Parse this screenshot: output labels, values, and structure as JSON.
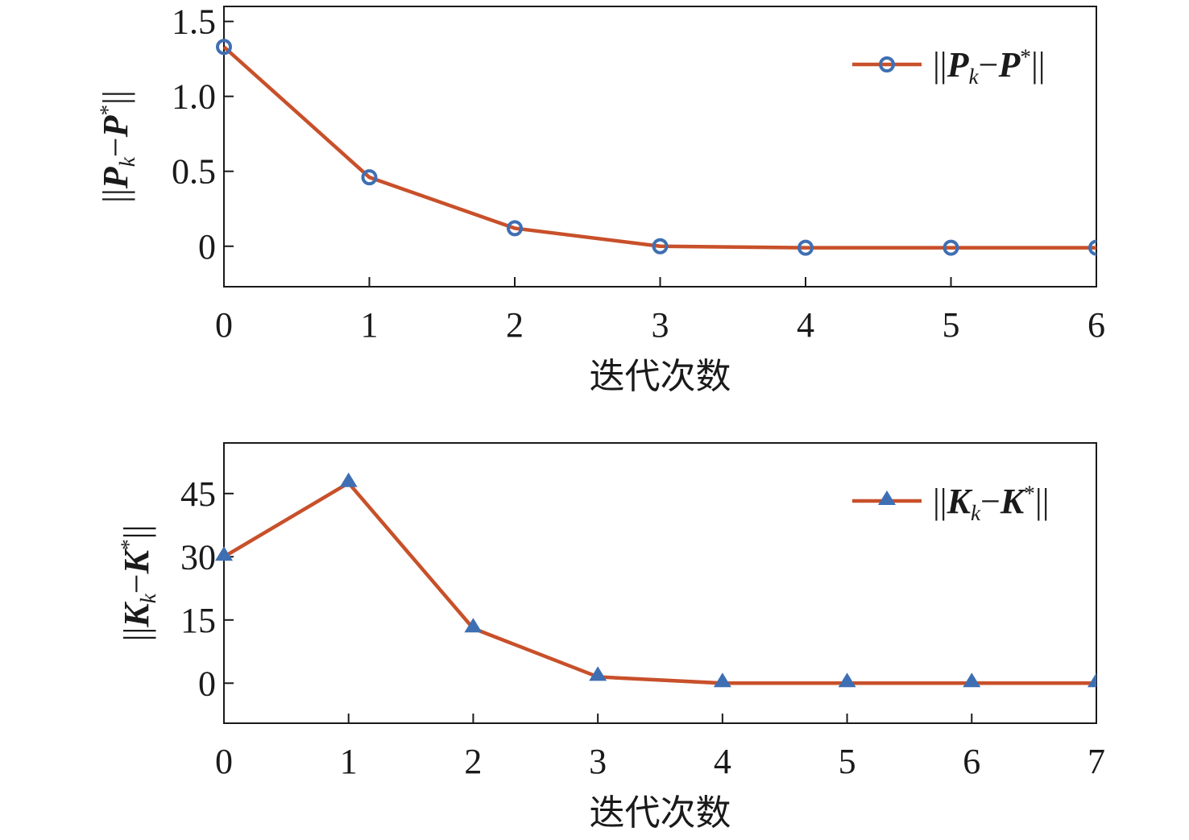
{
  "chart_data": [
    {
      "type": "line",
      "xlabel": "迭代次数",
      "ylabel": {
        "norm_open": "||",
        "main": "P",
        "sub": "k",
        "minus": "−",
        "main2": "P",
        "sup": "*",
        "norm_close": "||"
      },
      "xlim": [
        0,
        6
      ],
      "ylim": [
        -0.27,
        1.6
      ],
      "xticks": [
        0,
        1,
        2,
        3,
        4,
        5,
        6
      ],
      "yticks": [
        {
          "value": 0,
          "label": "0"
        },
        {
          "value": 0.5,
          "label": "0.5"
        },
        {
          "value": 1.0,
          "label": "1.0"
        },
        {
          "value": 1.5,
          "label": "1.5"
        }
      ],
      "grid": false,
      "legend_position": "top-right",
      "marker": "circle",
      "series": [
        {
          "legend": {
            "norm_open": "||",
            "main": "P",
            "sub": "k",
            "minus": "−",
            "main2": "P",
            "sup": "*",
            "norm_close": "||"
          },
          "line_color": "#c8502a",
          "marker_color": "#3f6fb3",
          "x": [
            0,
            1,
            2,
            3,
            4,
            5,
            6
          ],
          "y": [
            1.33,
            0.46,
            0.12,
            0.0,
            -0.01,
            -0.01,
            -0.01
          ]
        }
      ]
    },
    {
      "type": "line",
      "xlabel": "迭代次数",
      "ylabel": {
        "norm_open": "||",
        "main": "K",
        "sub": "k",
        "minus": "−",
        "main2": "K",
        "sup": "*",
        "norm_close": "||"
      },
      "xlim": [
        0,
        7
      ],
      "ylim": [
        -9.5,
        57
      ],
      "xticks": [
        0,
        1,
        2,
        3,
        4,
        5,
        6,
        7
      ],
      "yticks": [
        {
          "value": 0,
          "label": "0"
        },
        {
          "value": 15,
          "label": "15"
        },
        {
          "value": 30,
          "label": "30"
        },
        {
          "value": 45,
          "label": "45"
        }
      ],
      "grid": false,
      "legend_position": "top-right",
      "marker": "triangle",
      "series": [
        {
          "legend": {
            "norm_open": "||",
            "main": "K",
            "sub": "k",
            "minus": "−",
            "main2": "K",
            "sup": "*",
            "norm_close": "||"
          },
          "line_color": "#c8502a",
          "marker_color": "#3f6fb3",
          "x": [
            0,
            1,
            2,
            3,
            4,
            5,
            6,
            7
          ],
          "y": [
            30,
            47.5,
            13,
            1.5,
            0,
            0,
            0,
            0
          ]
        }
      ]
    }
  ]
}
